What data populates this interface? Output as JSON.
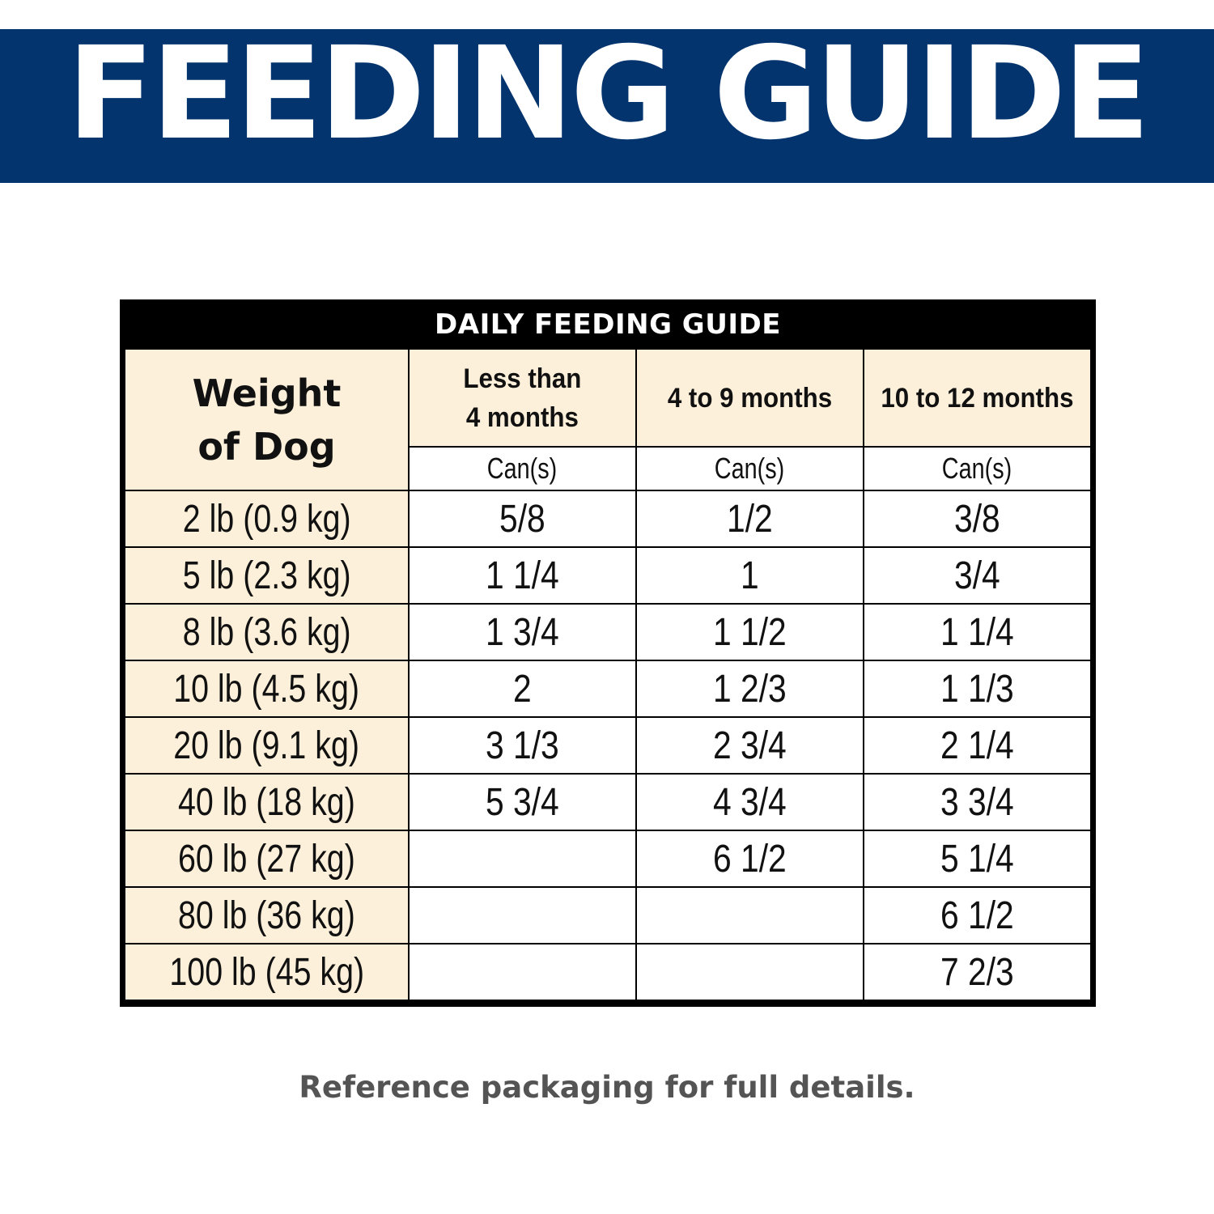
{
  "banner": {
    "title": "FEEDING GUIDE",
    "background": "#03346E"
  },
  "table": {
    "title": "DAILY FEEDING GUIDE",
    "weight_header_line1": "Weight",
    "weight_header_line2": "of Dog",
    "age_columns": [
      {
        "line1": "Less than",
        "line2": "4 months",
        "unit": "Can(s)"
      },
      {
        "line1": "4 to 9 months",
        "line2": "",
        "unit": "Can(s)"
      },
      {
        "line1": "10 to 12 months",
        "line2": "",
        "unit": "Can(s)"
      }
    ],
    "rows": [
      {
        "weight": "2 lb (0.9 kg)",
        "values": [
          "5/8",
          "1/2",
          "3/8"
        ]
      },
      {
        "weight": "5 lb (2.3 kg)",
        "values": [
          "1 1/4",
          "1",
          "3/4"
        ]
      },
      {
        "weight": "8 lb (3.6 kg)",
        "values": [
          "1 3/4",
          "1 1/2",
          "1 1/4"
        ]
      },
      {
        "weight": "10 lb (4.5 kg)",
        "values": [
          "2",
          "1 2/3",
          "1 1/3"
        ]
      },
      {
        "weight": "20 lb (9.1 kg)",
        "values": [
          "3 1/3",
          "2 3/4",
          "2 1/4"
        ]
      },
      {
        "weight": "40 lb (18 kg)",
        "values": [
          "5 3/4",
          "4 3/4",
          "3 3/4"
        ]
      },
      {
        "weight": "60 lb (27 kg)",
        "values": [
          "",
          "6 1/2",
          "5 1/4"
        ]
      },
      {
        "weight": "80 lb (36 kg)",
        "values": [
          "",
          "",
          "6 1/2"
        ]
      },
      {
        "weight": "100 lb (45 kg)",
        "values": [
          "",
          "",
          "7 2/3"
        ]
      }
    ],
    "header_fill": "#FDF0DA"
  },
  "footer": {
    "note": "Reference packaging for full details."
  }
}
